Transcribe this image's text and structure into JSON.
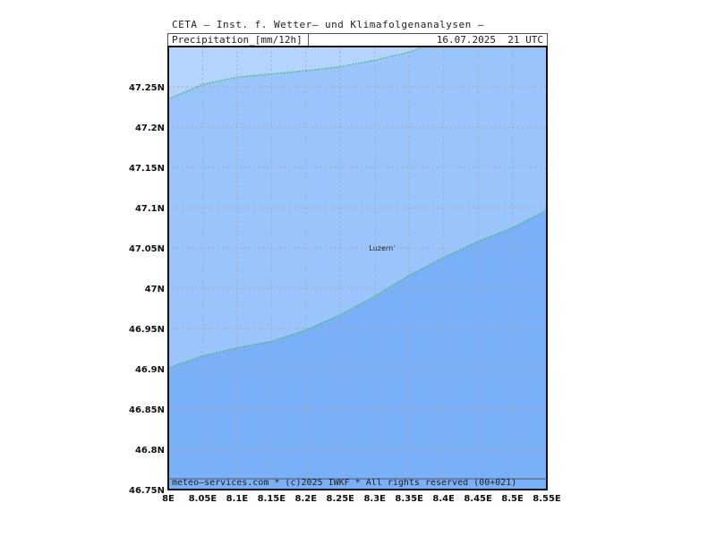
{
  "header": {
    "institute": "CETA — Inst. f. Wetter— und Klimafolgenanalysen —",
    "product": "Precipitation_[mm/12h]",
    "valid_time": "16.07.2025  21 UTC"
  },
  "footer": {
    "copyright": "meteo—services.com * (c)2025 IWKF * All rights reserved (00+021)"
  },
  "map": {
    "lon_range": [
      8.0,
      8.55
    ],
    "lat_range": [
      46.75,
      47.3
    ],
    "lon_ticks": [
      "8E",
      "8.05E",
      "8.1E",
      "8.15E",
      "8.2E",
      "8.25E",
      "8.3E",
      "8.35E",
      "8.4E",
      "8.45E",
      "8.5E",
      "8.55E"
    ],
    "lat_ticks": [
      "47.25N",
      "47.2N",
      "47.15N",
      "47.1N",
      "47.05N",
      "47N",
      "46.95N",
      "46.9N",
      "46.85N",
      "46.8N",
      "46.75N"
    ],
    "grid": true,
    "cities": [
      {
        "name": "Luzern",
        "lon": 8.31,
        "lat": 47.05
      }
    ],
    "colors": {
      "band_light": "#b3d4fc",
      "band_mid": "#99c4fc",
      "band_dark": "#7ab0f8",
      "contour": "#44bb66",
      "grid": "#aaaaaa"
    },
    "contours": [
      {
        "points": [
          [
            8.0,
            47.235
          ],
          [
            8.05,
            47.253
          ],
          [
            8.1,
            47.262
          ],
          [
            8.15,
            47.266
          ],
          [
            8.2,
            47.27
          ],
          [
            8.25,
            47.275
          ],
          [
            8.3,
            47.283
          ],
          [
            8.35,
            47.293
          ],
          [
            8.37,
            47.3
          ]
        ]
      },
      {
        "points": [
          [
            8.0,
            46.901
          ],
          [
            8.05,
            46.916
          ],
          [
            8.1,
            46.926
          ],
          [
            8.15,
            46.934
          ],
          [
            8.2,
            46.948
          ],
          [
            8.25,
            46.967
          ],
          [
            8.3,
            46.99
          ],
          [
            8.35,
            47.016
          ],
          [
            8.4,
            47.038
          ],
          [
            8.45,
            47.058
          ],
          [
            8.5,
            47.075
          ],
          [
            8.55,
            47.097
          ]
        ]
      }
    ]
  }
}
